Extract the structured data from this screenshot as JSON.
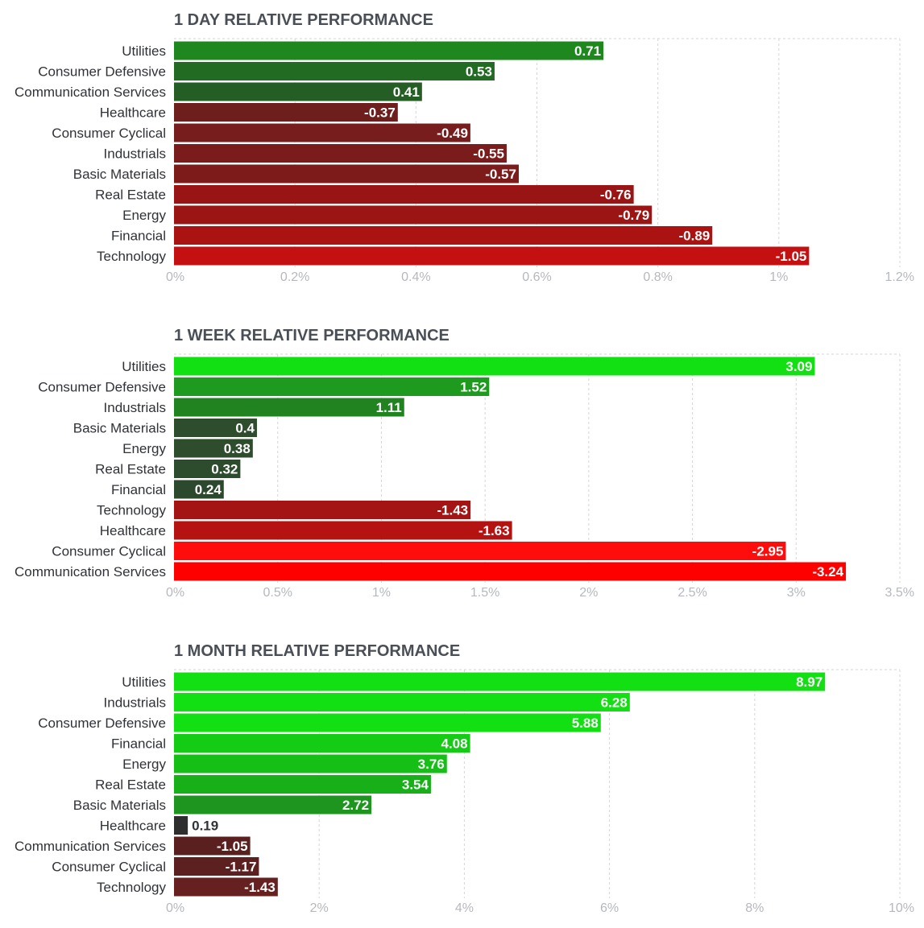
{
  "chart_data": [
    {
      "type": "bar",
      "orientation": "horizontal",
      "title": "1 DAY RELATIVE PERFORMANCE",
      "categories": [
        "Utilities",
        "Consumer Defensive",
        "Communication Services",
        "Healthcare",
        "Consumer Cyclical",
        "Industrials",
        "Basic Materials",
        "Real Estate",
        "Energy",
        "Financial",
        "Technology"
      ],
      "values": [
        0.71,
        0.53,
        0.41,
        -0.37,
        -0.49,
        -0.55,
        -0.57,
        -0.76,
        -0.79,
        -0.89,
        -1.05
      ],
      "value_labels": [
        "0.71",
        "0.53",
        "0.41",
        "-0.37",
        "-0.49",
        "-0.55",
        "-0.57",
        "-0.76",
        "-0.79",
        "-0.89",
        "-1.05"
      ],
      "colors": [
        "#1e881e",
        "#226b22",
        "#245e24",
        "#6f1e1e",
        "#781d1d",
        "#7b1c1c",
        "#7d1b1b",
        "#991515",
        "#9c1515",
        "#ab1212",
        "#c41010"
      ],
      "xlim": [
        0,
        1.2
      ],
      "ticks": [
        0,
        0.2,
        0.4,
        0.6,
        0.8,
        1,
        1.2
      ],
      "tick_labels": [
        "0%",
        "0.2%",
        "0.4%",
        "0.6%",
        "0.8%",
        "1%",
        "1.2%"
      ],
      "xlabel": "",
      "ylabel": "",
      "grid": true
    },
    {
      "type": "bar",
      "orientation": "horizontal",
      "title": "1 WEEK RELATIVE PERFORMANCE",
      "categories": [
        "Utilities",
        "Consumer Defensive",
        "Industrials",
        "Basic Materials",
        "Energy",
        "Real Estate",
        "Financial",
        "Technology",
        "Healthcare",
        "Consumer Cyclical",
        "Communication Services"
      ],
      "values": [
        3.09,
        1.52,
        1.11,
        0.4,
        0.38,
        0.32,
        0.24,
        -1.43,
        -1.63,
        -2.95,
        -3.24
      ],
      "value_labels": [
        "3.09",
        "1.52",
        "1.11",
        "0.4",
        "0.38",
        "0.32",
        "0.24",
        "-1.43",
        "-1.63",
        "-2.95",
        "-3.24"
      ],
      "colors": [
        "#12e012",
        "#1e9a1e",
        "#208320",
        "#2d4d2d",
        "#2d4d2d",
        "#2d4c2d",
        "#2d492d",
        "#a51414",
        "#b51212",
        "#ff0d0d",
        "#ff0000"
      ],
      "xlim": [
        0,
        3.5
      ],
      "ticks": [
        0,
        0.5,
        1,
        1.5,
        2,
        2.5,
        3,
        3.5
      ],
      "tick_labels": [
        "0%",
        "0.5%",
        "1%",
        "1.5%",
        "2%",
        "2.5%",
        "3%",
        "3.5%"
      ],
      "xlabel": "",
      "ylabel": "",
      "grid": true
    },
    {
      "type": "bar",
      "orientation": "horizontal",
      "title": "1 MONTH RELATIVE PERFORMANCE",
      "categories": [
        "Utilities",
        "Industrials",
        "Consumer Defensive",
        "Financial",
        "Energy",
        "Real Estate",
        "Basic Materials",
        "Healthcare",
        "Communication Services",
        "Consumer Cyclical",
        "Technology"
      ],
      "values": [
        8.97,
        6.28,
        5.88,
        4.08,
        3.76,
        3.54,
        2.72,
        0.19,
        -1.05,
        -1.17,
        -1.43
      ],
      "value_labels": [
        "8.97",
        "6.28",
        "5.88",
        "4.08",
        "3.76",
        "3.54",
        "2.72",
        "0.19",
        "-1.05",
        "-1.17",
        "-1.43"
      ],
      "colors": [
        "#12e012",
        "#12e012",
        "#12e012",
        "#14cc14",
        "#16bf16",
        "#18b018",
        "#1e951e",
        "#2e2e2e",
        "#5a2020",
        "#5d2020",
        "#662020"
      ],
      "xlim": [
        0,
        10
      ],
      "ticks": [
        0,
        2,
        4,
        6,
        8,
        10
      ],
      "tick_labels": [
        "0%",
        "2%",
        "4%",
        "6%",
        "8%",
        "10%"
      ],
      "xlabel": "",
      "ylabel": "",
      "grid": true
    }
  ]
}
